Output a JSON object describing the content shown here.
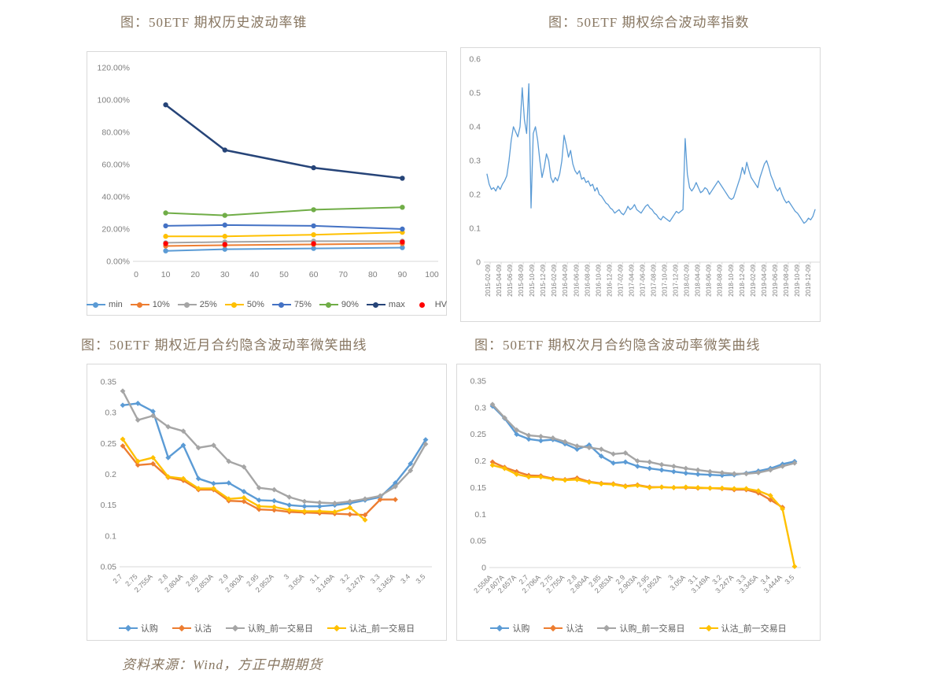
{
  "source_note": "资料来源：Wind，方正中期期货",
  "colors": {
    "title_brown": "#877661",
    "axis_gray": "#7f7f7f",
    "border_gray": "#d9d9d9",
    "light_blue": "#5b9bd5",
    "orange": "#ed7d31",
    "gray": "#a5a5a5",
    "gold": "#ffc000",
    "blue": "#4472c4",
    "green": "#70ad47",
    "navy": "#264478",
    "red": "#ff0000"
  },
  "chart_data": [
    {
      "id": "vol-cone",
      "type": "line",
      "title": "图：50ETF 期权历史波动率锥",
      "x": [
        10,
        30,
        60,
        90
      ],
      "xlim": [
        0,
        100
      ],
      "xticks": [
        0,
        10,
        20,
        30,
        40,
        50,
        60,
        70,
        80,
        90,
        100
      ],
      "ylim": [
        0,
        1.2
      ],
      "yticks": [
        0,
        0.2,
        0.4,
        0.6,
        0.8,
        1.0,
        1.2
      ],
      "percent": true,
      "legend": true,
      "legend_position": "bottom",
      "grid": false,
      "series": [
        {
          "name": "min",
          "color": "#5b9bd5",
          "values": [
            0.065,
            0.075,
            0.08,
            0.085
          ]
        },
        {
          "name": "10%",
          "color": "#ed7d31",
          "values": [
            0.095,
            0.1,
            0.105,
            0.11
          ]
        },
        {
          "name": "25%",
          "color": "#a5a5a5",
          "values": [
            0.115,
            0.12,
            0.125,
            0.125
          ]
        },
        {
          "name": "50%",
          "color": "#ffc000",
          "values": [
            0.155,
            0.155,
            0.165,
            0.18
          ]
        },
        {
          "name": "75%",
          "color": "#4472c4",
          "values": [
            0.22,
            0.225,
            0.22,
            0.2
          ]
        },
        {
          "name": "90%",
          "color": "#70ad47",
          "values": [
            0.3,
            0.285,
            0.32,
            0.335
          ]
        },
        {
          "name": "max",
          "color": "#264478",
          "width": 2.5,
          "values": [
            0.97,
            0.69,
            0.58,
            0.515
          ]
        },
        {
          "name": "HV",
          "color": "#ff0000",
          "markers_only": true,
          "values": [
            0.11,
            0.105,
            0.11,
            0.12
          ]
        }
      ]
    },
    {
      "id": "vol-index",
      "type": "line",
      "title": "图：50ETF 期权综合波动率指数",
      "ylim": [
        0,
        0.6
      ],
      "yticks": [
        0,
        0.1,
        0.2,
        0.3,
        0.4,
        0.5,
        0.6
      ],
      "legend": false,
      "grid": false,
      "xtick_labels": [
        "2015-02-09",
        "2015-04-09",
        "2015-06-09",
        "2015-08-09",
        "2015-10-09",
        "2015-12-09",
        "2016-02-09",
        "2016-04-09",
        "2016-06-09",
        "2016-08-09",
        "2016-10-09",
        "2016-12-09",
        "2017-02-09",
        "2017-04-09",
        "2017-06-09",
        "2017-08-09",
        "2017-10-09",
        "2017-12-09",
        "2018-02-09",
        "2018-04-09",
        "2018-06-09",
        "2018-08-09",
        "2018-10-09",
        "2018-12-09",
        "2019-02-09",
        "2019-04-09",
        "2019-06-09",
        "2019-08-09",
        "2019-10-09",
        "2019-12-09"
      ],
      "series": [
        {
          "color": "#5b9bd5",
          "width": 1.3,
          "values": [
            0.26,
            0.23,
            0.215,
            0.22,
            0.21,
            0.225,
            0.215,
            0.23,
            0.24,
            0.255,
            0.3,
            0.36,
            0.4,
            0.385,
            0.37,
            0.4,
            0.515,
            0.42,
            0.38,
            0.527,
            0.16,
            0.38,
            0.4,
            0.36,
            0.3,
            0.25,
            0.28,
            0.32,
            0.3,
            0.25,
            0.235,
            0.25,
            0.24,
            0.26,
            0.3,
            0.375,
            0.345,
            0.31,
            0.33,
            0.29,
            0.27,
            0.26,
            0.27,
            0.245,
            0.25,
            0.235,
            0.24,
            0.225,
            0.23,
            0.21,
            0.22,
            0.2,
            0.195,
            0.185,
            0.175,
            0.17,
            0.16,
            0.155,
            0.145,
            0.15,
            0.155,
            0.145,
            0.14,
            0.15,
            0.165,
            0.155,
            0.16,
            0.17,
            0.155,
            0.15,
            0.145,
            0.155,
            0.165,
            0.17,
            0.16,
            0.155,
            0.145,
            0.14,
            0.13,
            0.125,
            0.135,
            0.13,
            0.125,
            0.12,
            0.13,
            0.14,
            0.15,
            0.145,
            0.15,
            0.155,
            0.365,
            0.26,
            0.22,
            0.21,
            0.22,
            0.235,
            0.22,
            0.205,
            0.21,
            0.22,
            0.215,
            0.2,
            0.21,
            0.22,
            0.23,
            0.24,
            0.23,
            0.22,
            0.21,
            0.2,
            0.19,
            0.185,
            0.19,
            0.21,
            0.23,
            0.25,
            0.28,
            0.26,
            0.295,
            0.27,
            0.25,
            0.24,
            0.23,
            0.22,
            0.25,
            0.27,
            0.29,
            0.3,
            0.28,
            0.255,
            0.24,
            0.22,
            0.21,
            0.22,
            0.2,
            0.185,
            0.175,
            0.18,
            0.17,
            0.16,
            0.15,
            0.145,
            0.135,
            0.125,
            0.115,
            0.12,
            0.13,
            0.125,
            0.135,
            0.155
          ]
        }
      ]
    },
    {
      "id": "smile-near-month",
      "type": "line",
      "title": "图：50ETF 期权近月合约隐含波动率微笑曲线",
      "categories": [
        "2.7",
        "2.75",
        "2.755A",
        "2.8",
        "2.804A",
        "2.85",
        "2.853A",
        "2.9",
        "2.903A",
        "2.95",
        "2.952A",
        "3",
        "3.05A",
        "3.1",
        "3.149A",
        "3.2",
        "3.247A",
        "3.3",
        "3.345A",
        "3.4",
        "3.5"
      ],
      "ylim": [
        0.05,
        0.35
      ],
      "yticks": [
        0.05,
        0.1,
        0.15,
        0.2,
        0.25,
        0.3,
        0.35
      ],
      "legend": true,
      "legend_position": "bottom",
      "grid": false,
      "series": [
        {
          "name": "认购",
          "color": "#5b9bd5",
          "values": [
            0.312,
            0.315,
            0.302,
            0.227,
            0.247,
            0.193,
            0.185,
            0.186,
            0.172,
            0.158,
            0.157,
            0.15,
            0.148,
            0.148,
            0.15,
            0.153,
            0.158,
            0.163,
            0.186,
            0.217,
            0.256
          ]
        },
        {
          "name": "认沽",
          "color": "#ed7d31",
          "values": [
            0.246,
            0.215,
            0.217,
            0.195,
            0.19,
            0.175,
            0.175,
            0.157,
            0.156,
            0.143,
            0.142,
            0.139,
            0.138,
            0.137,
            0.136,
            0.135,
            0.134,
            0.159,
            0.159,
            null,
            null
          ]
        },
        {
          "name": "认购_前一交易日",
          "color": "#a5a5a5",
          "values": [
            0.335,
            0.288,
            0.295,
            0.277,
            0.27,
            0.243,
            0.247,
            0.221,
            0.212,
            0.178,
            0.175,
            0.163,
            0.156,
            0.154,
            0.153,
            0.156,
            0.16,
            0.165,
            0.18,
            0.206,
            0.249
          ]
        },
        {
          "name": "认沽_前一交易日",
          "color": "#ffc000",
          "values": [
            0.257,
            0.221,
            0.227,
            0.196,
            0.193,
            0.177,
            0.177,
            0.16,
            0.162,
            0.148,
            0.147,
            0.142,
            0.14,
            0.14,
            0.139,
            0.146,
            0.126,
            null,
            null,
            null,
            null
          ]
        }
      ]
    },
    {
      "id": "smile-next-month",
      "type": "line",
      "title": "图：50ETF 期权次月合约隐含波动率微笑曲线",
      "categories": [
        "2.558A",
        "2.607A",
        "2.657A",
        "2.7",
        "2.706A",
        "2.75",
        "2.755A",
        "2.8",
        "2.804A",
        "2.85",
        "2.853A",
        "2.9",
        "2.903A",
        "2.95",
        "2.952A",
        "3",
        "3.05A",
        "3.1",
        "3.149A",
        "3.2",
        "3.247A",
        "3.3",
        "3.345A",
        "3.4",
        "3.444A",
        "3.5"
      ],
      "ylim": [
        0,
        0.35
      ],
      "yticks": [
        0,
        0.05,
        0.1,
        0.15,
        0.2,
        0.25,
        0.3,
        0.35
      ],
      "legend": true,
      "legend_position": "bottom",
      "grid": false,
      "series": [
        {
          "name": "认购",
          "color": "#5b9bd5",
          "values": [
            0.303,
            0.28,
            0.25,
            0.241,
            0.238,
            0.24,
            0.232,
            0.222,
            0.23,
            0.209,
            0.196,
            0.198,
            0.19,
            0.186,
            0.183,
            0.18,
            0.177,
            0.175,
            0.174,
            0.173,
            0.174,
            0.177,
            0.181,
            0.186,
            0.194,
            0.199
          ]
        },
        {
          "name": "认沽",
          "color": "#ed7d31",
          "values": [
            0.198,
            0.188,
            0.18,
            0.173,
            0.172,
            0.167,
            0.165,
            0.168,
            0.161,
            0.158,
            0.157,
            0.153,
            0.155,
            0.151,
            0.151,
            0.15,
            0.15,
            0.149,
            0.149,
            0.148,
            0.146,
            0.146,
            0.14,
            0.127,
            0.113,
            null
          ]
        },
        {
          "name": "认购_前一交易日",
          "color": "#a5a5a5",
          "values": [
            0.306,
            0.281,
            0.258,
            0.248,
            0.246,
            0.243,
            0.236,
            0.228,
            0.225,
            0.222,
            0.213,
            0.215,
            0.2,
            0.198,
            0.193,
            0.19,
            0.186,
            0.183,
            0.18,
            0.178,
            0.176,
            0.176,
            0.178,
            0.183,
            0.19,
            0.196
          ]
        },
        {
          "name": "认沽_前一交易日",
          "color": "#ffc000",
          "values": [
            0.192,
            0.186,
            0.175,
            0.17,
            0.17,
            0.166,
            0.164,
            0.165,
            0.16,
            0.157,
            0.156,
            0.152,
            0.154,
            0.15,
            0.151,
            0.15,
            0.151,
            0.15,
            0.149,
            0.149,
            0.148,
            0.148,
            0.144,
            0.135,
            0.11,
            0.002
          ]
        }
      ]
    }
  ]
}
